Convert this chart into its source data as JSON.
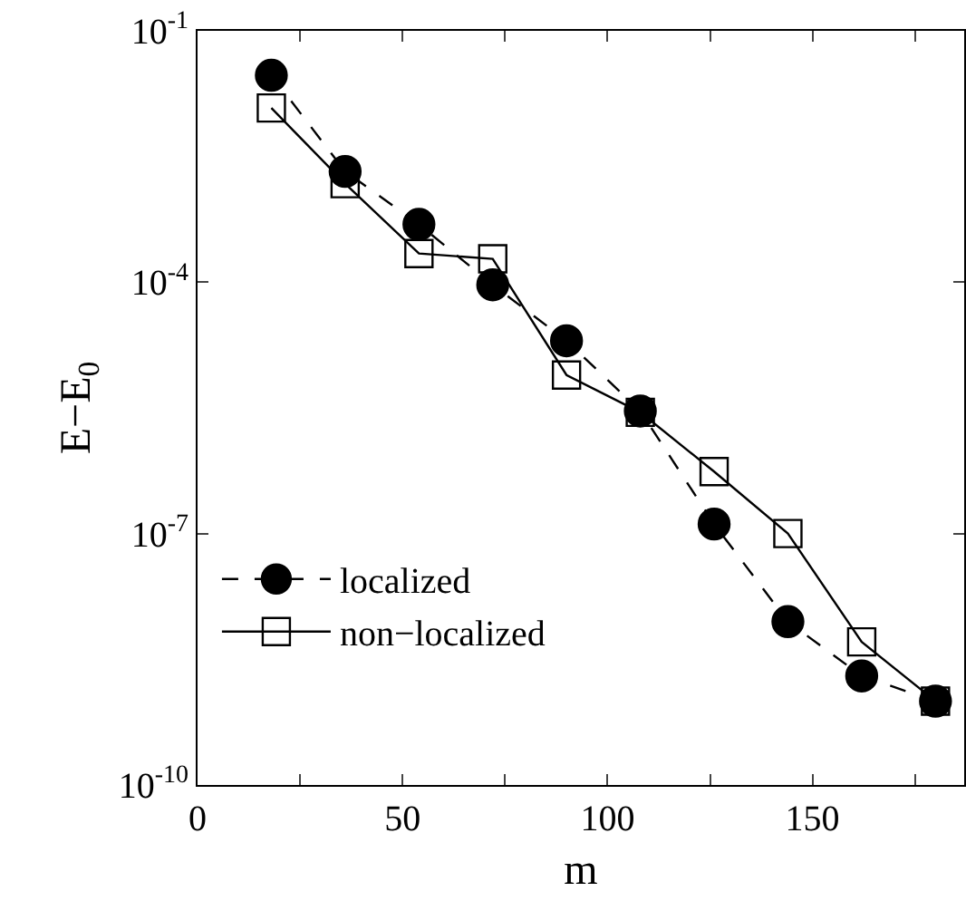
{
  "chart_data": {
    "type": "line",
    "xlabel": "m",
    "ylabel": "E−E$_{0}$",
    "log": "y",
    "grid": false,
    "legend": "bottom left",
    "x": [
      18,
      36,
      54,
      72,
      90,
      108,
      126,
      144,
      162,
      180
    ],
    "xlim": [
      0,
      187
    ],
    "xticks": [
      0,
      {
        "value": 25,
        "label": null
      },
      50,
      {
        "value": 75,
        "label": null
      },
      100,
      {
        "value": 125,
        "label": null
      },
      150,
      {
        "value": 175,
        "label": null
      }
    ],
    "ylim": [
      1e-10,
      0.1
    ],
    "yticks": [
      {
        "value": 1e-10,
        "label": "10$^{-10}$"
      },
      {
        "value": 1e-07,
        "label": "10$^{-7}$"
      },
      {
        "value": 0.0001,
        "label": "10$^{-4}$"
      },
      {
        "value": 0.1,
        "label": "10$^{-1}$"
      }
    ],
    "series": [
      {
        "name": "localized",
        "color": "#000000",
        "marker": "circle",
        "line_style": "dashed",
        "values": [
          0.0295,
          0.0021,
          0.00049,
          9.3e-05,
          2e-05,
          2.9e-06,
          1.3e-07,
          8.9e-09,
          2e-09,
          1e-09
        ]
      },
      {
        "name": "non−localized",
        "color": "#000000",
        "marker": "square",
        "line_style": "solid",
        "values": [
          0.012,
          0.0015,
          0.00022,
          0.00019,
          7.8e-06,
          2.8e-06,
          5.5e-07,
          1e-07,
          5.1e-09,
          1e-09
        ]
      }
    ]
  }
}
